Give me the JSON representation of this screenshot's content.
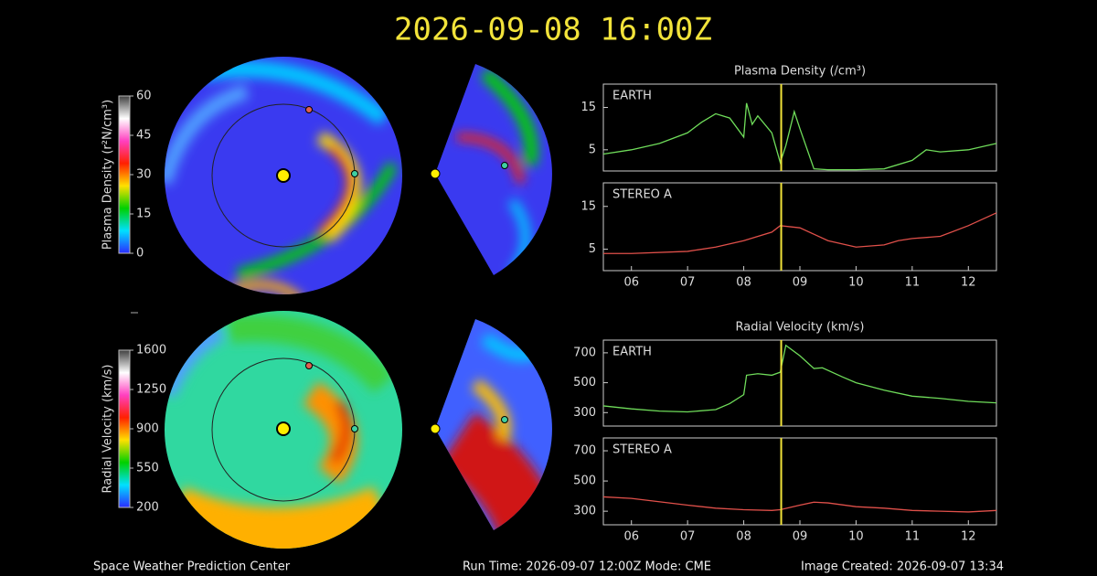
{
  "header": {
    "title": "2026-09-08 16:00Z"
  },
  "footer": {
    "left": "Space Weather Prediction Center",
    "center": "Run Time: 2026-09-07 12:00Z  Mode: CME",
    "right": "Image Created: 2026-09-07 13:34"
  },
  "chart_data": [
    {
      "type": "colorbar",
      "label": "Plasma Density (r²N/cm³)",
      "ylim": [
        0,
        60
      ],
      "yticks": [
        0,
        15,
        30,
        45,
        60
      ],
      "colors": [
        "#2b2bff",
        "#00e0ff",
        "#00d000",
        "#ffe000",
        "#ff2000",
        "#ff40c0",
        "#ffffff",
        "#404040"
      ]
    },
    {
      "type": "colorbar",
      "label": "Radial Velocity (km/s)",
      "ylim": [
        200,
        1600
      ],
      "yticks": [
        200,
        550,
        900,
        1250,
        1600
      ],
      "colors": [
        "#2b2bff",
        "#00e0ff",
        "#00d000",
        "#ffe000",
        "#ff2000",
        "#ff40c0",
        "#ffffff",
        "#404040"
      ]
    },
    {
      "type": "line",
      "title": "Plasma Density (/cm³)",
      "xlim": [
        5.5,
        12.5
      ],
      "ylim": [
        0,
        20.5
      ],
      "yticks": [
        5,
        15
      ],
      "marker_x": 8.667,
      "series": [
        {
          "name": "EARTH",
          "color": "#6fdc5a",
          "x": [
            5.5,
            6,
            6.5,
            7,
            7.25,
            7.5,
            7.75,
            8,
            8.05,
            8.15,
            8.25,
            8.5,
            8.65,
            8.75,
            8.9,
            9,
            9.25,
            9.5,
            10,
            10.5,
            11,
            11.25,
            11.5,
            12,
            12.5
          ],
          "values": [
            4,
            5,
            6.5,
            9,
            11.5,
            13.5,
            12.5,
            8,
            16,
            11,
            13,
            9,
            2,
            6,
            14,
            10,
            0.5,
            0.3,
            0.3,
            0.5,
            2.5,
            5,
            4.5,
            5,
            6.5
          ]
        }
      ]
    },
    {
      "type": "line",
      "xlim": [
        5.5,
        12.5
      ],
      "ylim": [
        0,
        20.5
      ],
      "yticks": [
        5,
        15
      ],
      "marker_x": 8.667,
      "xticks": [
        {
          "value": 6,
          "label": "06"
        },
        {
          "value": 7,
          "label": "07"
        },
        {
          "value": 8,
          "label": "08"
        },
        {
          "value": 9,
          "label": "09"
        },
        10,
        11,
        12
      ],
      "series": [
        {
          "name": "STEREO A",
          "color": "#e0504a",
          "x": [
            5.5,
            6,
            7,
            7.5,
            8,
            8.5,
            8.65,
            9,
            9.5,
            10,
            10.5,
            10.75,
            11,
            11.5,
            12,
            12.5
          ],
          "values": [
            4,
            4,
            4.5,
            5.5,
            7,
            9,
            10.5,
            10,
            7,
            5.5,
            6,
            7,
            7.5,
            8,
            10.5,
            13.5
          ]
        }
      ]
    },
    {
      "type": "line",
      "title": "Radial Velocity (km/s)",
      "xlim": [
        5.5,
        12.5
      ],
      "ylim": [
        210,
        785
      ],
      "yticks": [
        300,
        500,
        700
      ],
      "marker_x": 8.667,
      "series": [
        {
          "name": "EARTH",
          "color": "#6fdc5a",
          "x": [
            5.5,
            6,
            6.5,
            7,
            7.5,
            7.75,
            8,
            8.05,
            8.25,
            8.5,
            8.65,
            8.75,
            9,
            9.25,
            9.4,
            9.75,
            10,
            10.5,
            11,
            11.5,
            12,
            12.5
          ],
          "values": [
            345,
            325,
            310,
            305,
            320,
            360,
            420,
            550,
            560,
            550,
            570,
            750,
            680,
            595,
            600,
            540,
            500,
            450,
            410,
            395,
            375,
            365
          ]
        }
      ]
    },
    {
      "type": "line",
      "xlim": [
        5.5,
        12.5
      ],
      "ylim": [
        210,
        785
      ],
      "yticks": [
        300,
        500,
        700
      ],
      "marker_x": 8.667,
      "xticks": [
        {
          "value": 6,
          "label": "06"
        },
        {
          "value": 7,
          "label": "07"
        },
        {
          "value": 8,
          "label": "08"
        },
        {
          "value": 9,
          "label": "09"
        },
        10,
        11,
        12
      ],
      "series": [
        {
          "name": "STEREO A",
          "color": "#e0504a",
          "x": [
            5.5,
            6,
            7,
            7.5,
            8,
            8.5,
            8.65,
            9,
            9.25,
            9.5,
            10,
            10.5,
            11,
            11.5,
            12,
            12.5
          ],
          "values": [
            395,
            385,
            340,
            320,
            310,
            305,
            310,
            340,
            360,
            355,
            330,
            320,
            305,
            300,
            295,
            305
          ]
        }
      ]
    }
  ]
}
